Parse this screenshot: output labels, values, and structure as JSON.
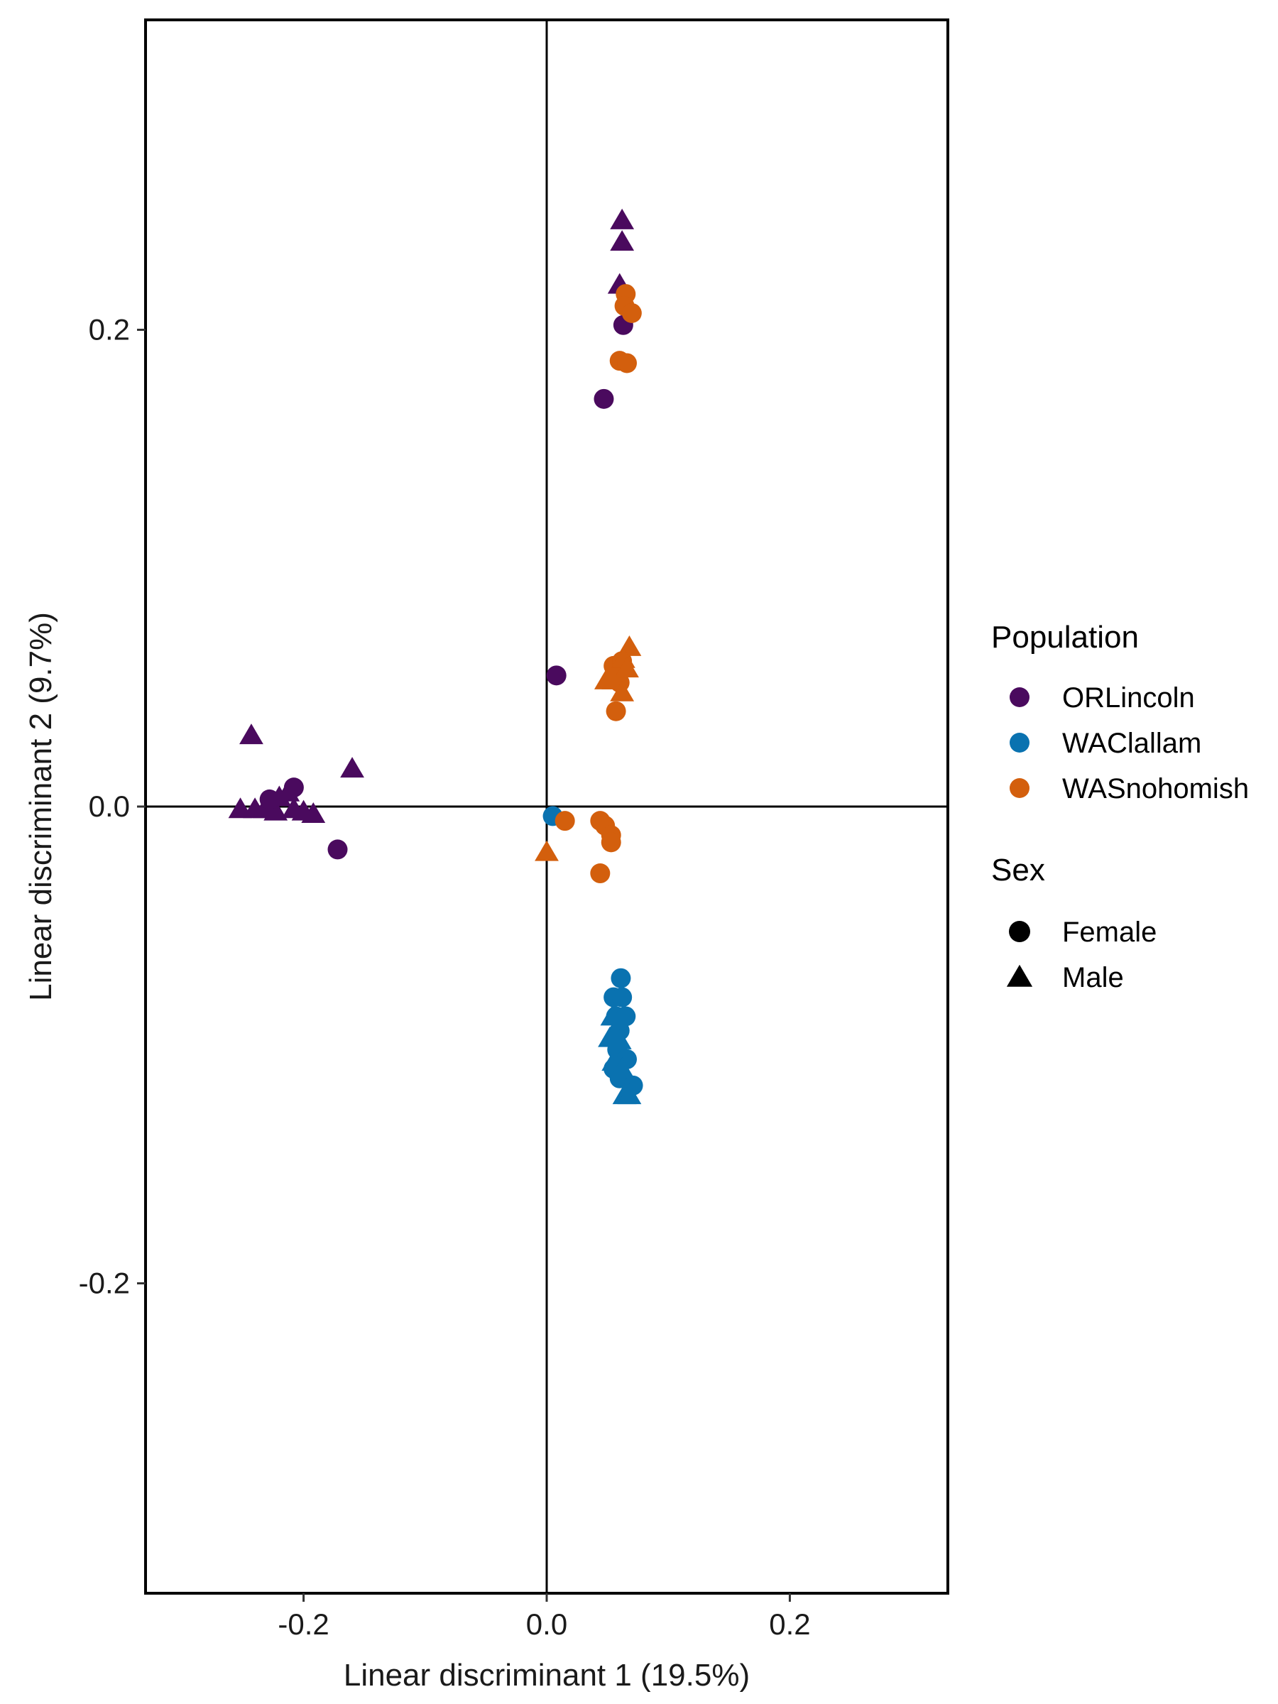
{
  "chart_data": {
    "type": "scatter",
    "xlabel": "Linear discriminant 1 (19.5%)",
    "ylabel": "Linear discriminant 2 (9.7%)",
    "xlim": [
      -0.33,
      0.33
    ],
    "ylim": [
      -0.33,
      0.33
    ],
    "xticks": [
      -0.2,
      0.0,
      0.2
    ],
    "yticks": [
      -0.2,
      0.0,
      0.2
    ],
    "xtick_labels": [
      "-0.2",
      "0.0",
      "0.2"
    ],
    "ytick_labels": [
      "-0.2",
      "0.0",
      "0.2"
    ],
    "reference_lines": {
      "x": 0,
      "y": 0
    },
    "grid": false,
    "legend": {
      "placement": "right",
      "color_title": "Population",
      "shape_title": "Sex",
      "populations": [
        {
          "name": "ORLincoln",
          "color": "#4a0a5e"
        },
        {
          "name": "WAClallam",
          "color": "#0a72b0"
        },
        {
          "name": "WASnohomish",
          "color": "#d35f0d"
        }
      ],
      "sexes": [
        {
          "name": "Female",
          "shape": "circle"
        },
        {
          "name": "Male",
          "shape": "triangle"
        }
      ]
    },
    "series": [
      {
        "population": "ORLincoln",
        "sex": "Male",
        "points": [
          [
            0.062,
            0.246
          ],
          [
            0.062,
            0.237
          ],
          [
            0.06,
            0.219
          ],
          [
            -0.243,
            0.03
          ],
          [
            -0.16,
            0.016
          ],
          [
            -0.252,
            -0.001
          ],
          [
            -0.24,
            -0.001
          ],
          [
            -0.232,
            -0.001
          ],
          [
            -0.22,
            0.004
          ],
          [
            -0.213,
            0.006
          ],
          [
            -0.208,
            -0.001
          ],
          [
            -0.2,
            -0.002
          ],
          [
            -0.192,
            -0.003
          ],
          [
            -0.223,
            -0.002
          ]
        ]
      },
      {
        "population": "ORLincoln",
        "sex": "Female",
        "points": [
          [
            0.063,
            0.202
          ],
          [
            0.047,
            0.171
          ],
          [
            0.008,
            0.055
          ],
          [
            -0.172,
            -0.018
          ],
          [
            -0.208,
            0.008
          ],
          [
            -0.228,
            0.003
          ]
        ]
      },
      {
        "population": "WAClallam",
        "sex": "Female",
        "points": [
          [
            0.005,
            -0.004
          ],
          [
            0.061,
            -0.072
          ],
          [
            0.055,
            -0.08
          ],
          [
            0.062,
            -0.08
          ],
          [
            0.057,
            -0.088
          ],
          [
            0.065,
            -0.088
          ],
          [
            0.06,
            -0.094
          ],
          [
            0.058,
            -0.102
          ],
          [
            0.066,
            -0.106
          ],
          [
            0.055,
            -0.11
          ],
          [
            0.06,
            -0.114
          ],
          [
            0.071,
            -0.117
          ]
        ]
      },
      {
        "population": "WAClallam",
        "sex": "Male",
        "points": [
          [
            0.054,
            -0.088
          ],
          [
            0.052,
            -0.097
          ],
          [
            0.06,
            -0.098
          ],
          [
            0.055,
            -0.107
          ],
          [
            0.062,
            -0.11
          ],
          [
            0.064,
            -0.121
          ],
          [
            0.068,
            -0.121
          ]
        ]
      },
      {
        "population": "WASnohomish",
        "sex": "Female",
        "points": [
          [
            0.065,
            0.215
          ],
          [
            0.064,
            0.21
          ],
          [
            0.07,
            0.207
          ],
          [
            0.06,
            0.187
          ],
          [
            0.066,
            0.186
          ],
          [
            0.055,
            0.059
          ],
          [
            0.062,
            0.061
          ],
          [
            0.06,
            0.052
          ],
          [
            0.057,
            0.04
          ],
          [
            0.044,
            -0.006
          ],
          [
            0.048,
            -0.008
          ],
          [
            0.015,
            -0.006
          ],
          [
            0.053,
            -0.012
          ],
          [
            0.053,
            -0.015
          ],
          [
            0.044,
            -0.028
          ]
        ]
      },
      {
        "population": "WASnohomish",
        "sex": "Male",
        "points": [
          [
            0.068,
            0.067
          ],
          [
            0.063,
            0.062
          ],
          [
            0.066,
            0.058
          ],
          [
            0.049,
            0.053
          ],
          [
            0.055,
            0.053
          ],
          [
            0.062,
            0.048
          ],
          [
            0.0,
            -0.019
          ]
        ]
      }
    ]
  }
}
